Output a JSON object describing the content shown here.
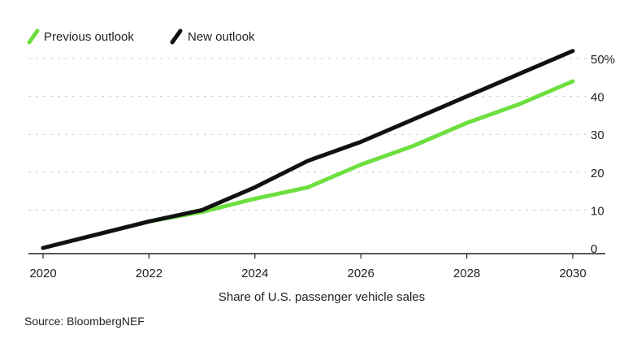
{
  "chart_data": {
    "type": "line",
    "title": "",
    "x": [
      2020,
      2021,
      2022,
      2023,
      2024,
      2025,
      2026,
      2027,
      2028,
      2029,
      2030
    ],
    "series": [
      {
        "name": "Previous outlook",
        "color": "#6ddf3f",
        "values": [
          0,
          3.5,
          7,
          9.5,
          13,
          16,
          22,
          27,
          33,
          38,
          44
        ]
      },
      {
        "name": "New outlook",
        "color": "#111111",
        "values": [
          0,
          3.5,
          7,
          10,
          16,
          23,
          28,
          34,
          40,
          46,
          52
        ]
      }
    ],
    "xticks": [
      "2020",
      "2022",
      "2024",
      "2026",
      "2028",
      "2030"
    ],
    "yticks": [
      "0",
      "10",
      "20",
      "30",
      "40",
      "50%"
    ],
    "ylim": [
      0,
      52
    ],
    "xlabel": "Share of U.S. passenger vehicle sales",
    "ylabel": "",
    "grid": true,
    "legend_position": "top-left",
    "source": "Source: BloombergNEF"
  }
}
